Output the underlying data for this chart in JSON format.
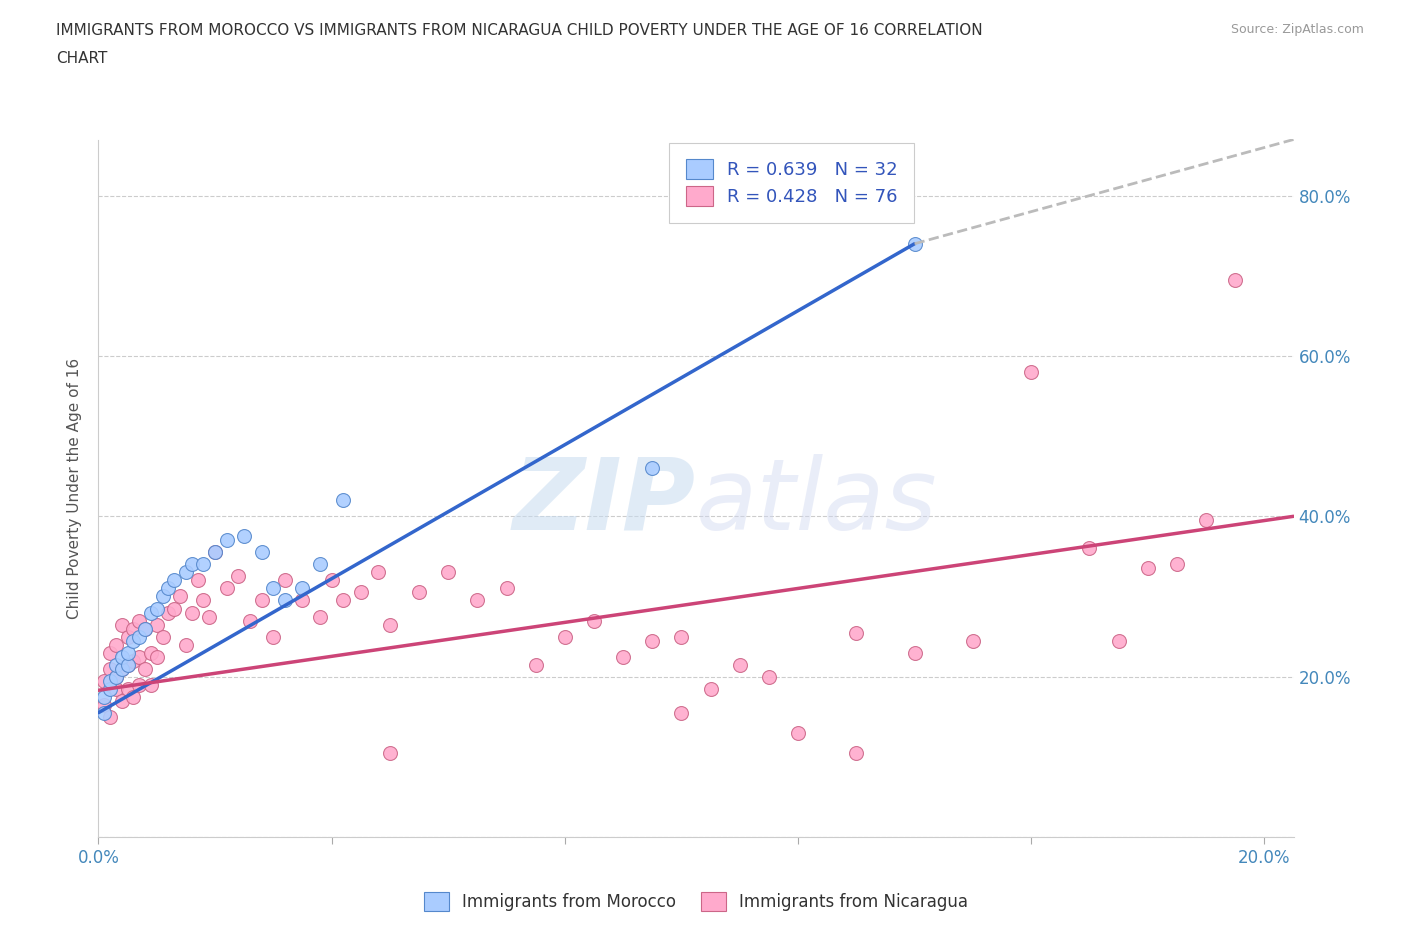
{
  "title_line1": "IMMIGRANTS FROM MOROCCO VS IMMIGRANTS FROM NICARAGUA CHILD POVERTY UNDER THE AGE OF 16 CORRELATION",
  "title_line2": "CHART",
  "source": "Source: ZipAtlas.com",
  "ylabel": "Child Poverty Under the Age of 16",
  "xlim": [
    0.0,
    0.205
  ],
  "ylim": [
    0.0,
    0.87
  ],
  "morocco_color": "#aaccff",
  "nicaragua_color": "#ffaacc",
  "morocco_edge": "#5588cc",
  "nicaragua_edge": "#cc6688",
  "trend_morocco_color": "#3366cc",
  "trend_nicaragua_color": "#cc4477",
  "trend_extension_color": "#bbbbbb",
  "R_morocco": 0.639,
  "N_morocco": 32,
  "R_nicaragua": 0.428,
  "N_nicaragua": 76,
  "morocco_x": [
    0.001,
    0.001,
    0.002,
    0.002,
    0.003,
    0.003,
    0.004,
    0.004,
    0.005,
    0.005,
    0.006,
    0.007,
    0.008,
    0.009,
    0.01,
    0.011,
    0.012,
    0.013,
    0.015,
    0.016,
    0.018,
    0.02,
    0.022,
    0.025,
    0.028,
    0.03,
    0.032,
    0.035,
    0.038,
    0.042,
    0.095,
    0.14
  ],
  "morocco_y": [
    0.155,
    0.175,
    0.185,
    0.195,
    0.2,
    0.215,
    0.21,
    0.225,
    0.215,
    0.23,
    0.245,
    0.25,
    0.26,
    0.28,
    0.285,
    0.3,
    0.31,
    0.32,
    0.33,
    0.34,
    0.34,
    0.355,
    0.37,
    0.375,
    0.355,
    0.31,
    0.295,
    0.31,
    0.34,
    0.42,
    0.46,
    0.74
  ],
  "nicaragua_x": [
    0.001,
    0.001,
    0.002,
    0.002,
    0.002,
    0.003,
    0.003,
    0.003,
    0.004,
    0.004,
    0.004,
    0.005,
    0.005,
    0.005,
    0.006,
    0.006,
    0.006,
    0.007,
    0.007,
    0.007,
    0.008,
    0.008,
    0.009,
    0.009,
    0.01,
    0.01,
    0.011,
    0.012,
    0.013,
    0.014,
    0.015,
    0.016,
    0.017,
    0.018,
    0.019,
    0.02,
    0.022,
    0.024,
    0.026,
    0.028,
    0.03,
    0.032,
    0.035,
    0.038,
    0.04,
    0.042,
    0.045,
    0.048,
    0.05,
    0.055,
    0.06,
    0.065,
    0.07,
    0.075,
    0.08,
    0.085,
    0.09,
    0.095,
    0.1,
    0.105,
    0.11,
    0.115,
    0.12,
    0.13,
    0.14,
    0.15,
    0.16,
    0.17,
    0.175,
    0.18,
    0.185,
    0.19,
    0.13,
    0.1,
    0.05,
    0.195
  ],
  "nicaragua_y": [
    0.195,
    0.165,
    0.15,
    0.21,
    0.23,
    0.185,
    0.2,
    0.24,
    0.17,
    0.21,
    0.265,
    0.185,
    0.215,
    0.25,
    0.175,
    0.22,
    0.26,
    0.19,
    0.225,
    0.27,
    0.21,
    0.26,
    0.19,
    0.23,
    0.225,
    0.265,
    0.25,
    0.28,
    0.285,
    0.3,
    0.24,
    0.28,
    0.32,
    0.295,
    0.275,
    0.355,
    0.31,
    0.325,
    0.27,
    0.295,
    0.25,
    0.32,
    0.295,
    0.275,
    0.32,
    0.295,
    0.305,
    0.33,
    0.265,
    0.305,
    0.33,
    0.295,
    0.31,
    0.215,
    0.25,
    0.27,
    0.225,
    0.245,
    0.155,
    0.185,
    0.215,
    0.2,
    0.13,
    0.105,
    0.23,
    0.245,
    0.58,
    0.36,
    0.245,
    0.335,
    0.34,
    0.395,
    0.255,
    0.25,
    0.105,
    0.695
  ],
  "trend_morocco_x0": 0.0,
  "trend_morocco_y0": 0.155,
  "trend_morocco_x1": 0.14,
  "trend_morocco_y1": 0.74,
  "trend_morocco_ext_x1": 0.205,
  "trend_morocco_ext_y1": 0.87,
  "trend_nicaragua_x0": 0.0,
  "trend_nicaragua_y0": 0.183,
  "trend_nicaragua_x1": 0.205,
  "trend_nicaragua_y1": 0.4,
  "watermark_zip": "ZIP",
  "watermark_atlas": "atlas",
  "background_color": "#ffffff",
  "grid_color": "#cccccc",
  "tick_color": "#4488bb",
  "label_color": "#555555",
  "legend_label_color": "#3355bb"
}
